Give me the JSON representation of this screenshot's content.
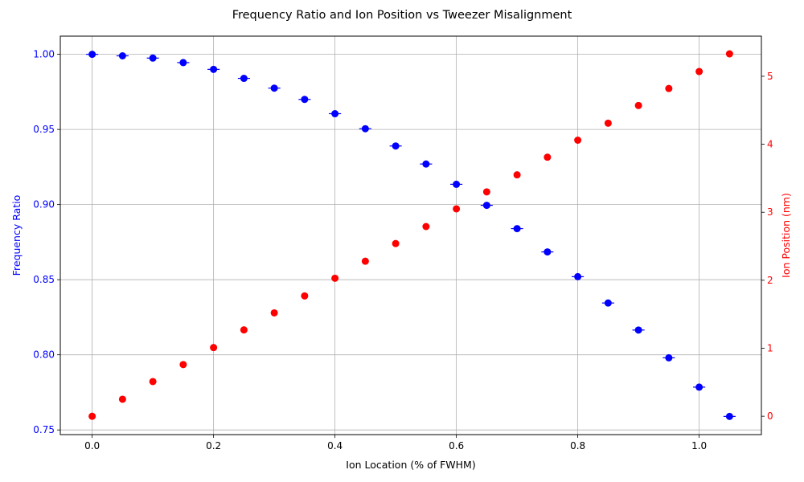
{
  "chart_data": {
    "type": "scatter",
    "title": "Frequency Ratio and Ion Position vs Tweezer Misalignment",
    "xlabel": "Ion Location (% of FWHM)",
    "ylabel_left": "Frequency Ratio",
    "ylabel_right": "Ion Position (nm)",
    "xlim": [
      -0.0525,
      1.1025
    ],
    "ylim_left": [
      0.7469,
      1.0121
    ],
    "ylim_right": [
      -0.27,
      5.59
    ],
    "x_ticks": [
      0.0,
      0.2,
      0.4,
      0.6,
      0.8,
      1.0
    ],
    "x_tick_labels": [
      "0.0",
      "0.2",
      "0.4",
      "0.6",
      "0.8",
      "1.0"
    ],
    "y_ticks_left": [
      0.75,
      0.8,
      0.85,
      0.9,
      0.95,
      1.0
    ],
    "y_tick_labels_left": [
      "0.75",
      "0.80",
      "0.85",
      "0.90",
      "0.95",
      "1.00"
    ],
    "y_ticks_right": [
      0,
      1,
      2,
      3,
      4,
      5
    ],
    "y_tick_labels_right": [
      "0",
      "1",
      "2",
      "3",
      "4",
      "5"
    ],
    "grid": true,
    "colors": {
      "left_axis": "#0000ff",
      "right_axis": "#ff0000"
    },
    "x": [
      0.0,
      0.05,
      0.1,
      0.15,
      0.2,
      0.25,
      0.3,
      0.35,
      0.4,
      0.45,
      0.5,
      0.55,
      0.6,
      0.65,
      0.7,
      0.75,
      0.8,
      0.85,
      0.9,
      0.95,
      1.0,
      1.05
    ],
    "series": [
      {
        "axis": "left",
        "marker": "circle-with-xerr",
        "color": "#0000ff",
        "values": [
          1.0,
          0.999,
          0.9975,
          0.9945,
          0.99,
          0.984,
          0.9775,
          0.97,
          0.9605,
          0.9505,
          0.939,
          0.927,
          0.9135,
          0.8995,
          0.884,
          0.8685,
          0.852,
          0.8345,
          0.8165,
          0.798,
          0.7785,
          0.759
        ],
        "x_error": 0.01
      },
      {
        "axis": "right",
        "marker": "circle",
        "color": "#ff0000",
        "values": [
          0.0,
          0.25,
          0.51,
          0.76,
          1.01,
          1.27,
          1.52,
          1.77,
          2.03,
          2.28,
          2.54,
          2.79,
          3.05,
          3.3,
          3.55,
          3.81,
          4.06,
          4.31,
          4.57,
          4.82,
          5.07,
          5.33
        ]
      }
    ]
  }
}
